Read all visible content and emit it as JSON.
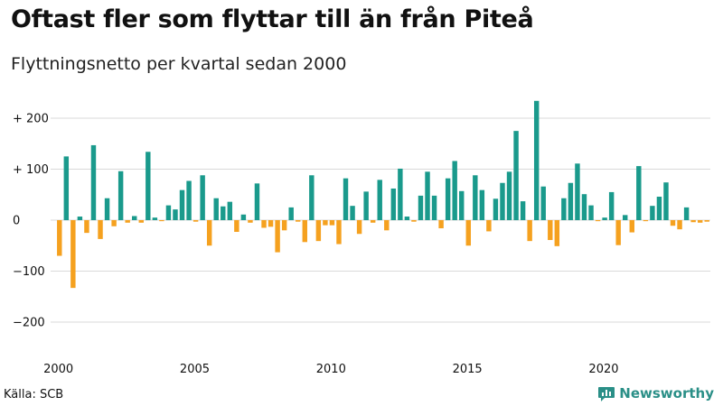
{
  "header": {
    "title": "Oftast fler som flyttar till än från Piteå",
    "subtitle": "Flyttningsnetto per kvartal sedan 2000"
  },
  "footer": {
    "source": "Källa: SCB",
    "brand": "Newsworthy"
  },
  "colors": {
    "positive": "#1a9a8c",
    "negative": "#f5a11f",
    "grid": "#d9d9d9",
    "axis_text": "#111111",
    "brand": "#2a8f87"
  },
  "chart_data": {
    "type": "bar",
    "title": "Oftast fler som flyttar till än från Piteå",
    "subtitle": "Flyttningsnetto per kvartal sedan 2000",
    "x_unit": "quarter",
    "start_year": 2000,
    "start_quarter": 1,
    "x_ticks": [
      2000,
      2005,
      2010,
      2015,
      2020
    ],
    "x_tick_labels": [
      "2000",
      "2005",
      "2010",
      "2015",
      "2020"
    ],
    "y_ticks": [
      200,
      100,
      0,
      -100,
      -200
    ],
    "y_tick_labels": [
      "+ 200",
      "+ 100",
      "0",
      "−100",
      "−200"
    ],
    "ylim": [
      -240,
      240
    ],
    "grid": true,
    "values": [
      -70,
      125,
      -133,
      7,
      -25,
      147,
      -37,
      43,
      -12,
      96,
      -5,
      8,
      -5,
      134,
      5,
      -2,
      29,
      21,
      59,
      77,
      -3,
      88,
      -50,
      43,
      27,
      36,
      -23,
      11,
      -5,
      72,
      -15,
      -13,
      -63,
      -20,
      25,
      -3,
      -43,
      88,
      -41,
      -10,
      -10,
      -47,
      82,
      28,
      -27,
      56,
      -5,
      79,
      -20,
      62,
      101,
      7,
      -3,
      48,
      95,
      48,
      -16,
      82,
      116,
      57,
      -50,
      88,
      59,
      -22,
      42,
      73,
      95,
      175,
      37,
      -41,
      234,
      66,
      -39,
      -51,
      43,
      73,
      111,
      51,
      29,
      -2,
      5,
      55,
      -49,
      10,
      -24,
      106,
      -2,
      28,
      46,
      74,
      -11,
      -18,
      25,
      -4,
      -5,
      -3
    ]
  }
}
